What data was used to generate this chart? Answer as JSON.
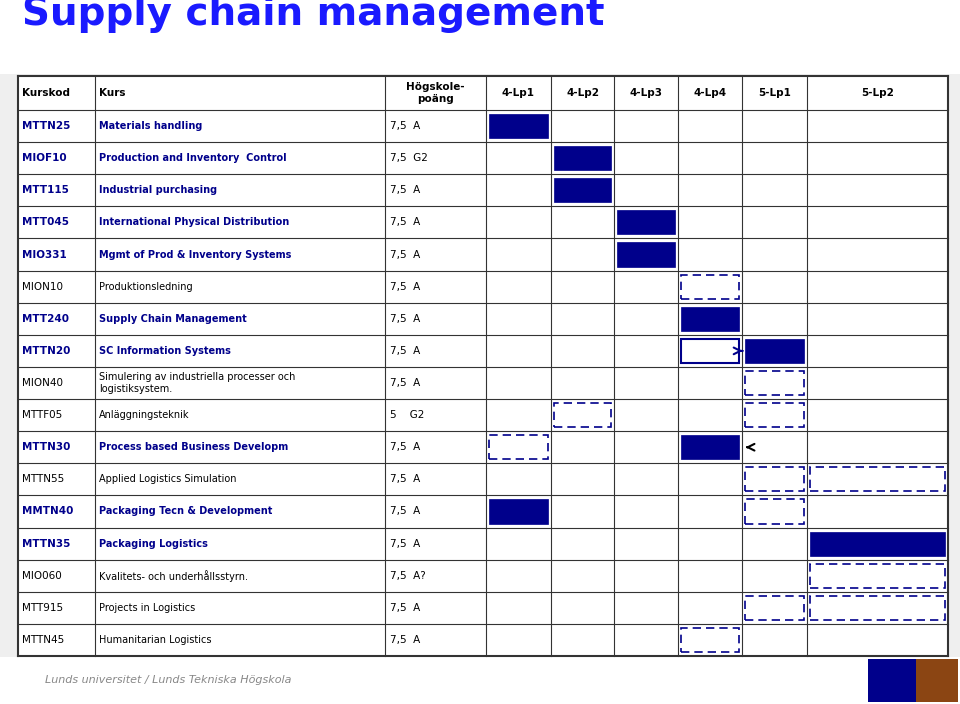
{
  "title": "Supply chain management",
  "title_color": "#1a1aff",
  "bg_color": "#f0f0f0",
  "footer": "Lunds universitet / Lunds Tekniska Högskola",
  "header_cols": [
    "Kurskod",
    "Kurs",
    "Högskole-\npoäng",
    "4-Lp1",
    "4-Lp2",
    "4-Lp3",
    "4-Lp4",
    "5-Lp1",
    "5-Lp2"
  ],
  "rows": [
    {
      "code": "MTTN25",
      "name": "Materials handling",
      "points": "7,5  A",
      "blue_lp": "4-Lp1",
      "dashed_lp": [],
      "special": null,
      "code_bold": true
    },
    {
      "code": "MIOF10",
      "name": "Production and Inventory  Control",
      "points": "7,5  G2",
      "blue_lp": "4-Lp2",
      "dashed_lp": [],
      "special": null,
      "code_bold": true
    },
    {
      "code": "MTT115",
      "name": "Industrial purchasing",
      "points": "7,5  A",
      "blue_lp": "4-Lp2",
      "dashed_lp": [],
      "special": null,
      "code_bold": true
    },
    {
      "code": "MTT045",
      "name": "International Physical Distribution",
      "points": "7,5  A",
      "blue_lp": "4-Lp3",
      "dashed_lp": [],
      "special": null,
      "code_bold": true
    },
    {
      "code": "MIO331",
      "name": "Mgmt of Prod & Inventory Systems",
      "points": "7,5  A",
      "blue_lp": "4-Lp3",
      "dashed_lp": [],
      "special": null,
      "code_bold": true
    },
    {
      "code": "MION10",
      "name": "Produktionsledning",
      "points": "7,5  A",
      "blue_lp": null,
      "dashed_lp": [
        "4-Lp4"
      ],
      "special": null,
      "code_bold": false
    },
    {
      "code": "MTT240",
      "name": "Supply Chain Management",
      "points": "7,5  A",
      "blue_lp": "4-Lp4",
      "dashed_lp": [],
      "special": null,
      "code_bold": true
    },
    {
      "code": "MTTN20",
      "name": "SC Information Systems",
      "points": "7,5  A",
      "blue_lp": "5-Lp1",
      "dashed_lp": [],
      "special": "arrow_right_4lp4",
      "code_bold": true
    },
    {
      "code": "MION40",
      "name": "Simulering av industriella processer och\nlogistiksystem.",
      "points": "7,5  A",
      "blue_lp": null,
      "dashed_lp": [
        "5-Lp1"
      ],
      "special": null,
      "code_bold": false
    },
    {
      "code": "MTTF05",
      "name": "Anläggningsteknik",
      "points": "5    G2",
      "blue_lp": null,
      "dashed_lp": [
        "4-Lp2",
        "5-Lp1"
      ],
      "special": null,
      "code_bold": false
    },
    {
      "code": "MTTN30",
      "name": "Process based Business Developm",
      "points": "7,5  A",
      "blue_lp": "4-Lp4",
      "dashed_lp": [
        "4-Lp1"
      ],
      "special": "arrow_left_5lp1",
      "code_bold": true
    },
    {
      "code": "MTTN55",
      "name": "Applied Logistics Simulation",
      "points": "7,5  A",
      "blue_lp": null,
      "dashed_lp": [
        "5-Lp1",
        "5-Lp2"
      ],
      "special": null,
      "code_bold": false
    },
    {
      "code": "MMTN40",
      "name": "Packaging Tecn & Development",
      "points": "7,5  A",
      "blue_lp": "4-Lp1",
      "dashed_lp": [
        "5-Lp1"
      ],
      "special": null,
      "code_bold": true
    },
    {
      "code": "MTTN35",
      "name": "Packaging Logistics",
      "points": "7,5  A",
      "blue_lp": "5-Lp2",
      "dashed_lp": [],
      "special": null,
      "code_bold": true
    },
    {
      "code": "MIO060",
      "name": "Kvalitets- och underhållsstyrn.",
      "points": "7,5  A?",
      "blue_lp": null,
      "dashed_lp": [
        "5-Lp2"
      ],
      "special": null,
      "code_bold": false
    },
    {
      "code": "MTT915",
      "name": "Projects in Logistics",
      "points": "7,5  A",
      "blue_lp": null,
      "dashed_lp": [
        "5-Lp1",
        "5-Lp2"
      ],
      "special": null,
      "code_bold": false
    },
    {
      "code": "MTTN45",
      "name": "Humanitarian Logistics",
      "points": "7,5  A",
      "blue_lp": null,
      "dashed_lp": [
        "4-Lp4"
      ],
      "special": null,
      "code_bold": false
    }
  ],
  "dark_blue": "#00008B",
  "text_blue": "#00008B",
  "dashed_color": "#00008B",
  "grid_color": "#333333",
  "outer_border_color": "#333333"
}
